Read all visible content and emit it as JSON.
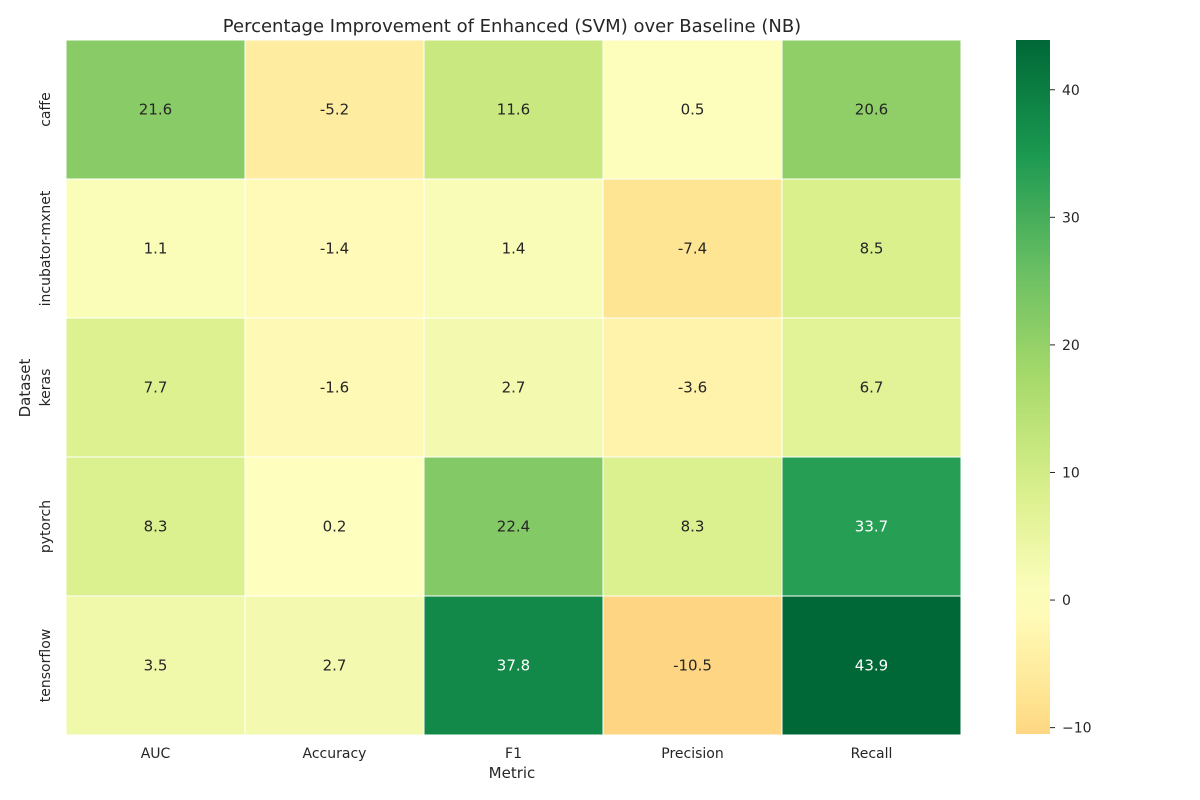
{
  "chart_data": {
    "type": "heatmap",
    "title": "Percentage Improvement of Enhanced (SVM) over Baseline (NB)",
    "xlabel": "Metric",
    "ylabel": "Dataset",
    "x": [
      "AUC",
      "Accuracy",
      "F1",
      "Precision",
      "Recall"
    ],
    "y": [
      "caffe",
      "incubator-mxnet",
      "keras",
      "pytorch",
      "tensorflow"
    ],
    "values": [
      [
        21.6,
        -5.2,
        11.6,
        0.5,
        20.6
      ],
      [
        1.1,
        -1.4,
        1.4,
        -7.4,
        8.5
      ],
      [
        7.7,
        -1.6,
        2.7,
        -3.6,
        6.7
      ],
      [
        8.3,
        0.2,
        22.4,
        8.3,
        33.7
      ],
      [
        3.5,
        2.7,
        37.8,
        -10.5,
        43.9
      ]
    ],
    "colorbar": {
      "range": [
        -10.5,
        43.9
      ],
      "center": 0,
      "ticks": [
        -10,
        0,
        10,
        20,
        30,
        40
      ],
      "colormap": "RdYlGn"
    }
  }
}
